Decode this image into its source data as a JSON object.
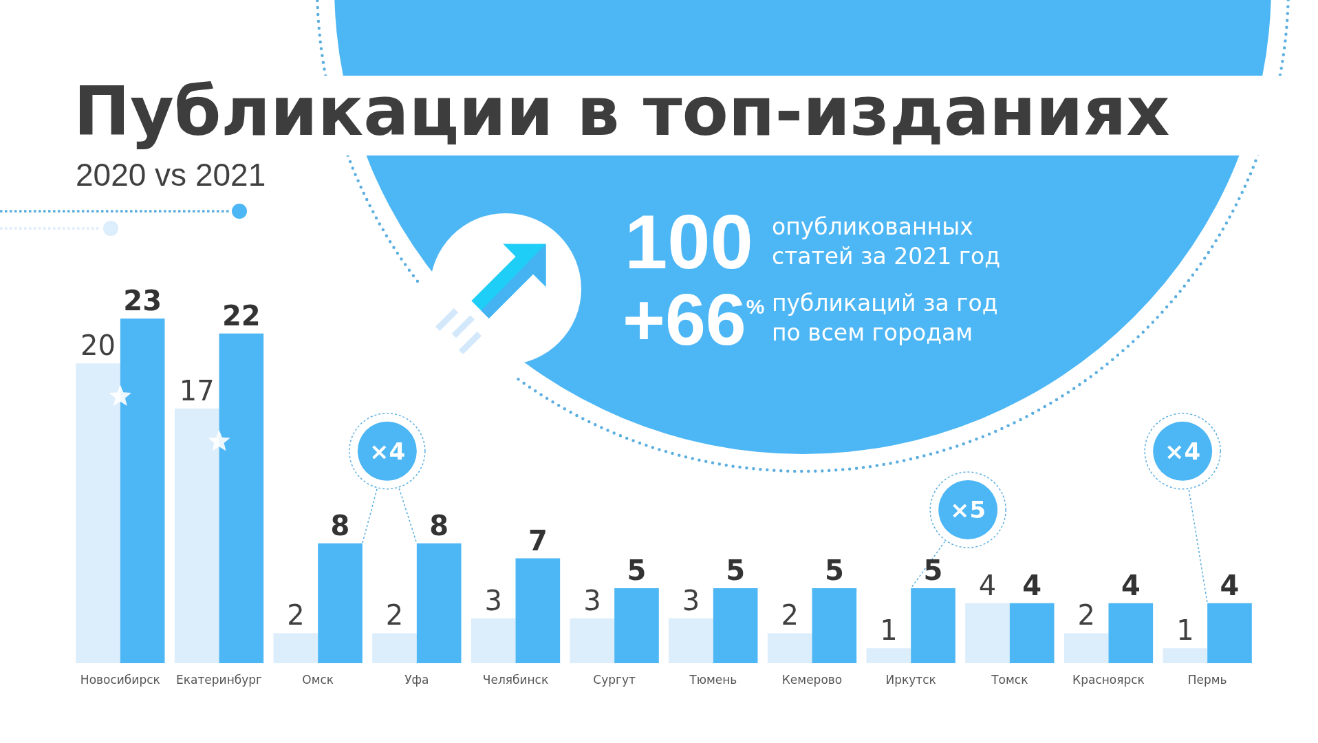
{
  "chart_data": {
    "type": "bar",
    "title": "Публикации в топ-изданиях",
    "subtitle": "2020 vs 2021",
    "categories": [
      "Новосибирск",
      "Екатеринбург",
      "Омск",
      "Уфа",
      "Челябинск",
      "Сургут",
      "Тюмень",
      "Кемерово",
      "Иркутск",
      "Томск",
      "Красноярск",
      "Пермь"
    ],
    "series": [
      {
        "color": "#dcedfb",
        "values": [
          20,
          17,
          2,
          2,
          3,
          3,
          3,
          2,
          1,
          4,
          2,
          1
        ]
      },
      {
        "color": "#4db6f4",
        "values": [
          23,
          22,
          8,
          8,
          7,
          5,
          5,
          5,
          5,
          4,
          4,
          4
        ]
      }
    ],
    "data_labels": true,
    "tick_labels": "x",
    "annotations": [
      "100",
      "опубликованных\nстатей за 2021 год",
      "+66$^{%}$",
      "публикаций за год\nпо всем городам",
      {
        "text": "×4",
        "x": "Уфа",
        "y": 8
      },
      {
        "text": "×5",
        "x": "Иркутск",
        "y": 5
      },
      {
        "text": "×4",
        "x": "Пермь",
        "y": 4
      }
    ]
  }
}
